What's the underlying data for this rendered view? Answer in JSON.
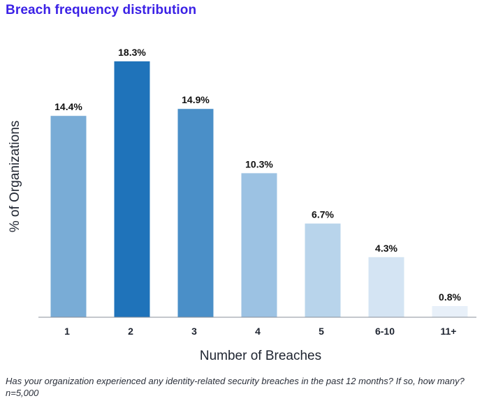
{
  "title": "Breach frequency distribution",
  "footnote": "Has your organization experienced any identity-related security breaches in the past 12 months? If so, how many? n=5,000",
  "chart_data": {
    "type": "bar",
    "title": "Breach frequency distribution",
    "xlabel": "Number of Breaches",
    "ylabel": "% of Organizations",
    "categories": [
      "1",
      "2",
      "3",
      "4",
      "5",
      "6-10",
      "11+"
    ],
    "values": [
      14.4,
      18.3,
      14.9,
      10.3,
      6.7,
      4.3,
      0.8
    ],
    "data_labels": [
      "14.4%",
      "18.3%",
      "14.9%",
      "10.3%",
      "6.7%",
      "4.3%",
      "0.8%"
    ],
    "bar_colors": [
      "#79acd6",
      "#1f73ba",
      "#4a8fc8",
      "#9cc2e3",
      "#b8d4eb",
      "#d4e4f3",
      "#e8f0f9"
    ],
    "ylim": [
      0,
      18.3
    ],
    "grid": false,
    "legend": "none"
  }
}
